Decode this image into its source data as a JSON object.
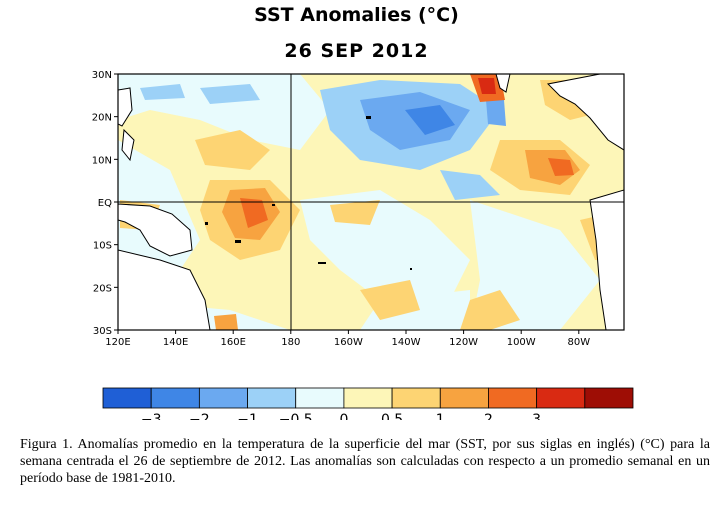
{
  "title": "SST Anomalies (°C)",
  "date": "26 SEP 2012",
  "map": {
    "lat_labels": [
      "30N",
      "20N",
      "10N",
      "EQ",
      "10S",
      "20S",
      "30S"
    ],
    "lon_labels": [
      "120E",
      "140E",
      "160E",
      "180",
      "160W",
      "140W",
      "120W",
      "100W",
      "80W"
    ],
    "lat_range": [
      -30,
      30
    ],
    "lon_range": [
      "120E",
      "70W"
    ]
  },
  "colorbar": {
    "labels": [
      "−3",
      "−2",
      "−1",
      "−0.5",
      "0",
      "0.5",
      "1",
      "2",
      "3"
    ],
    "colors": [
      "#1f5fd6",
      "#3f86e6",
      "#6ba9f0",
      "#9cd1f7",
      "#e8fbfd",
      "#fdf6b8",
      "#fdd473",
      "#f7a340",
      "#f06a22",
      "#d92a12",
      "#9e0d05"
    ]
  },
  "caption": "Figura 1. Anomalías promedio en la temperatura de la superficie del mar (SST, por sus siglas en inglés) (°C) para la semana centrada el 26 de septiembre de 2012.   Las anomalías son calculadas con respecto a un promedio semanal en un período base de 1981-2010."
}
